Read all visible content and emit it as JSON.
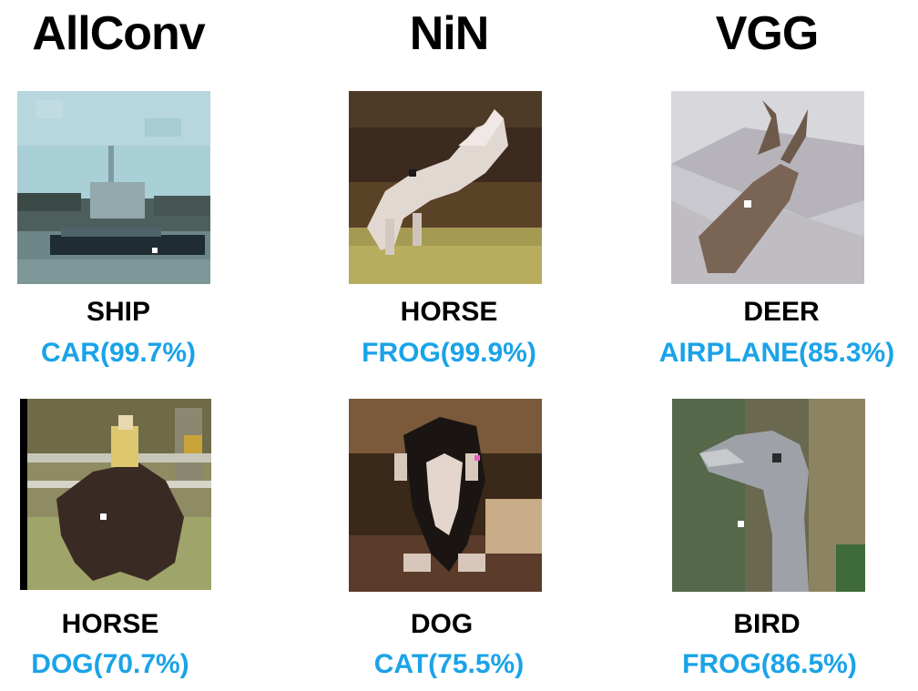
{
  "columns": [
    {
      "title": "AllConv"
    },
    {
      "title": "NiN"
    },
    {
      "title": "VGG"
    }
  ],
  "colors": {
    "title": "#000000",
    "true_label": "#000000",
    "predicted_label": "#1aa3e8"
  },
  "rows": [
    [
      {
        "true_label": "SHIP",
        "predicted": "CAR(99.7%)"
      },
      {
        "true_label": "HORSE",
        "predicted": "FROG(99.9%)"
      },
      {
        "true_label": "DEER",
        "predicted": "AIRPLANE(85.3%)"
      }
    ],
    [
      {
        "true_label": "HORSE",
        "predicted": "DOG(70.7%)"
      },
      {
        "true_label": "DOG",
        "predicted": "CAT(75.5%)"
      },
      {
        "true_label": "BIRD",
        "predicted": "FROG(86.5%)"
      }
    ]
  ]
}
